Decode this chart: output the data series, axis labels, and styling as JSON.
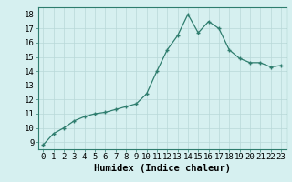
{
  "x": [
    0,
    1,
    2,
    3,
    4,
    5,
    6,
    7,
    8,
    9,
    10,
    11,
    12,
    13,
    14,
    15,
    16,
    17,
    18,
    19,
    20,
    21,
    22,
    23
  ],
  "y": [
    8.8,
    9.6,
    10.0,
    10.5,
    10.8,
    11.0,
    11.1,
    11.3,
    11.5,
    11.7,
    12.4,
    14.0,
    15.5,
    16.5,
    18.0,
    16.7,
    17.5,
    17.0,
    15.5,
    14.9,
    14.6,
    14.6,
    14.3,
    14.4
  ],
  "xlabel": "Humidex (Indice chaleur)",
  "xlim": [
    -0.5,
    23.5
  ],
  "ylim": [
    8.5,
    18.5
  ],
  "yticks": [
    9,
    10,
    11,
    12,
    13,
    14,
    15,
    16,
    17,
    18
  ],
  "xticks": [
    0,
    1,
    2,
    3,
    4,
    5,
    6,
    7,
    8,
    9,
    10,
    11,
    12,
    13,
    14,
    15,
    16,
    17,
    18,
    19,
    20,
    21,
    22,
    23
  ],
  "xtick_labels": [
    "0",
    "1",
    "2",
    "3",
    "4",
    "5",
    "6",
    "7",
    "8",
    "9",
    "10",
    "11",
    "12",
    "13",
    "14",
    "15",
    "16",
    "17",
    "18",
    "19",
    "20",
    "21",
    "22",
    "23"
  ],
  "line_color": "#2e7d6e",
  "marker": "+",
  "bg_color": "#d6f0f0",
  "grid_color": "#b8d8d8",
  "xlabel_fontsize": 7.5,
  "tick_fontsize": 6.5
}
